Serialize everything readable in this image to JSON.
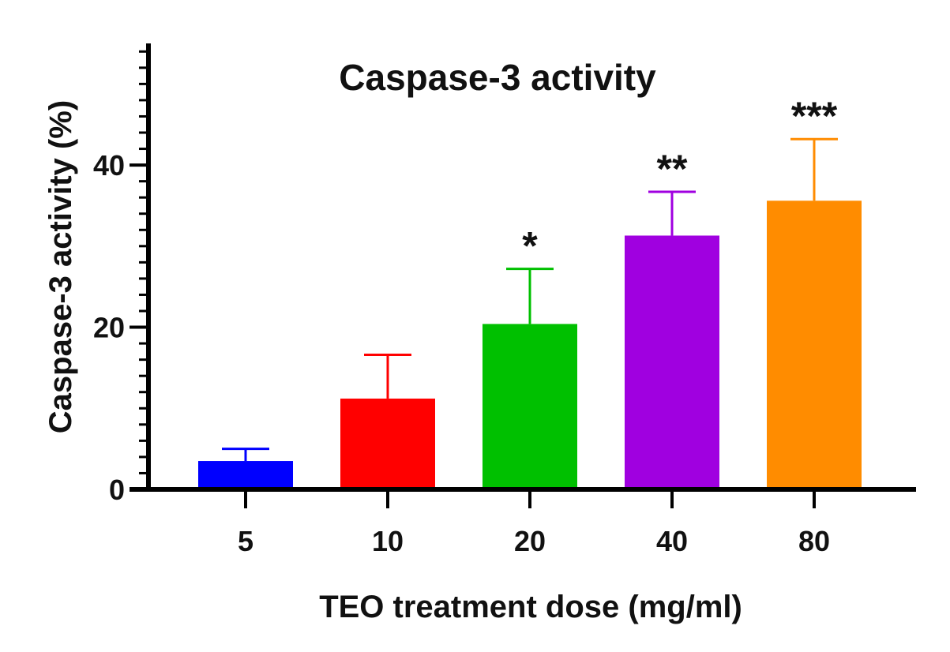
{
  "chart_data": {
    "type": "bar",
    "title": "Caspase-3 activity",
    "xlabel": "TEO treatment dose (mg/ml)",
    "ylabel": "Caspase-3 activity (%)",
    "categories": [
      "5",
      "10",
      "20",
      "40",
      "80"
    ],
    "values": [
      3.5,
      11.2,
      20.4,
      31.3,
      35.6
    ],
    "error_upper": [
      5.0,
      16.6,
      27.2,
      36.7,
      43.2
    ],
    "significance": [
      "",
      "",
      "*",
      "**",
      "***"
    ],
    "colors": [
      "#0000ff",
      "#ff0000",
      "#00c000",
      "#a000e0",
      "#ff8c00"
    ],
    "ylim": [
      0,
      55
    ],
    "yticks": [
      0,
      20,
      40
    ],
    "ytick_labels": [
      "0",
      "20",
      "40"
    ],
    "grid": false,
    "legend": "none"
  }
}
